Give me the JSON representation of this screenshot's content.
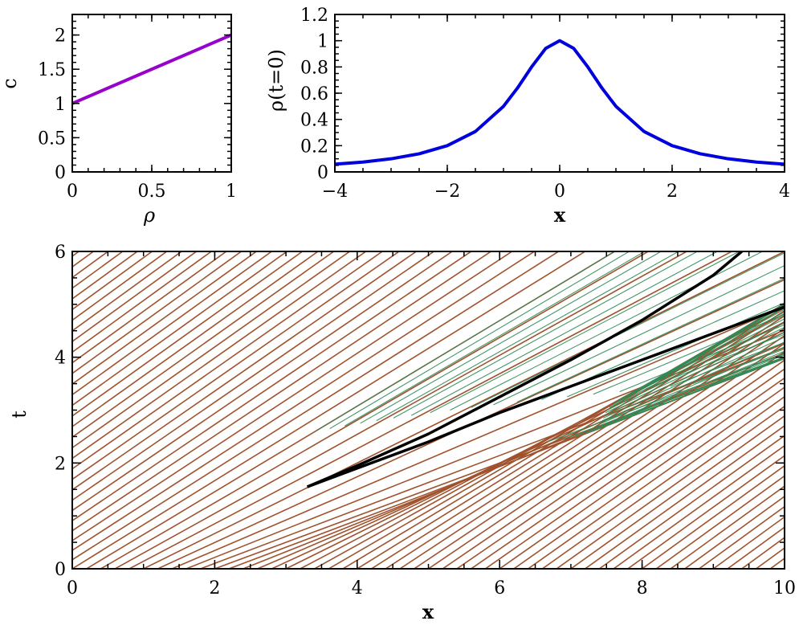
{
  "chart_data": [
    {
      "id": "c-vs-rho",
      "type": "line",
      "xlabel": "ρ",
      "ylabel": "c",
      "xlim": [
        0,
        1
      ],
      "ylim": [
        0,
        2.3
      ],
      "x_ticks": [
        "0",
        "0.5",
        "1"
      ],
      "y_ticks": [
        "0",
        "0.5",
        "1",
        "1.5",
        "2"
      ],
      "series": [
        {
          "x": [
            0,
            1
          ],
          "y": [
            1,
            2
          ],
          "color": "#9900cc"
        }
      ]
    },
    {
      "id": "rho-initial",
      "type": "line",
      "xlabel": "x",
      "ylabel": "ρ(t=0)",
      "xlim": [
        -4,
        4
      ],
      "ylim": [
        0,
        1.2
      ],
      "x_ticks": [
        "−4",
        "−2",
        "0",
        "2",
        "4"
      ],
      "y_ticks": [
        "0",
        "0.2",
        "0.4",
        "0.6",
        "0.8",
        "1",
        "1.2"
      ],
      "series": [
        {
          "x": [
            -4,
            -3.5,
            -3,
            -2.5,
            -2,
            -1.5,
            -1,
            -0.75,
            -0.5,
            -0.25,
            0,
            0.25,
            0.5,
            0.75,
            1,
            1.5,
            2,
            2.5,
            3,
            3.5,
            4
          ],
          "y": [
            0.059,
            0.075,
            0.1,
            0.138,
            0.2,
            0.308,
            0.5,
            0.64,
            0.8,
            0.941,
            1.0,
            0.941,
            0.8,
            0.64,
            0.5,
            0.308,
            0.2,
            0.138,
            0.1,
            0.075,
            0.059
          ],
          "color": "#0000dd"
        }
      ]
    },
    {
      "id": "characteristics",
      "type": "line",
      "xlabel": "x",
      "ylabel": "t",
      "xlim": [
        0,
        10
      ],
      "ylim": [
        0,
        6
      ],
      "x_ticks": [
        "0",
        "2",
        "4",
        "6",
        "8",
        "10"
      ],
      "y_ticks": [
        "0",
        "2",
        "4",
        "6"
      ],
      "characteristic_color": "#a0522d",
      "fan_color": "#2e8b57",
      "shock_color": "#000000",
      "series": [
        {
          "x": [
            3.3,
            4.0,
            5.0,
            6.0,
            7.0,
            8.0,
            9.0,
            9.4
          ],
          "y": [
            1.55,
            1.95,
            2.55,
            3.25,
            3.95,
            4.7,
            5.55,
            6.0
          ],
          "color": "#000000"
        },
        {
          "x": [
            3.3,
            4.0,
            5.0,
            6.0,
            7.0,
            8.0,
            9.0,
            10.0
          ],
          "y": [
            1.55,
            1.9,
            2.4,
            2.95,
            3.45,
            3.95,
            4.45,
            4.95
          ],
          "color": "#000000"
        }
      ]
    }
  ]
}
